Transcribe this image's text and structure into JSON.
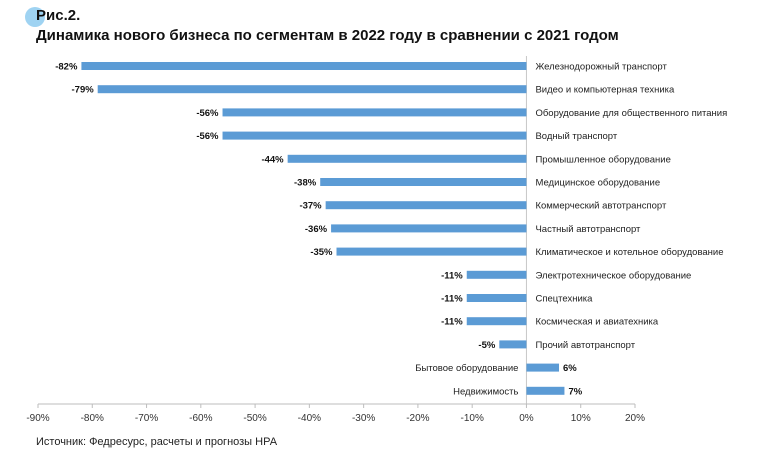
{
  "figure_label": "Рис.2.",
  "source_note": "Источник: Федресурс, расчеты и прогнозы НРА",
  "chart_data": {
    "type": "bar",
    "orientation": "horizontal",
    "title": "Динамика нового бизнеса по сегментам в 2022 году в сравнении с 2021 годом",
    "xlabel": "",
    "ylabel": "",
    "xlim": [
      -90,
      20
    ],
    "xticks": [
      -90,
      -80,
      -70,
      -60,
      -50,
      -40,
      -30,
      -20,
      -10,
      0,
      10,
      20
    ],
    "tick_suffix": "%",
    "bar_color": "#5b9bd5",
    "grid": false,
    "categories": [
      "Железнодорожный транспорт",
      "Видео и компьютерная техника",
      "Оборудование для общественного питания",
      "Водный транспорт",
      "Промышленное оборудование",
      "Медицинское оборудование",
      "Коммерческий автотранспорт",
      "Частный автотранспорт",
      "Климатическое и котельное оборудование",
      "Электротехническое оборудование",
      "Спецтехника",
      "Космическая и авиатехника",
      "Прочий автотранспорт",
      "Бытовое оборудование",
      "Недвижимость"
    ],
    "values": [
      -82,
      -79,
      -56,
      -56,
      -44,
      -38,
      -37,
      -36,
      -35,
      -11,
      -11,
      -11,
      -5,
      6,
      7
    ],
    "data_labels": [
      "-82%",
      "-79%",
      "-56%",
      "-56%",
      "-44%",
      "-38%",
      "-37%",
      "-36%",
      "-35%",
      "-11%",
      "-11%",
      "-11%",
      "-5%",
      "6%",
      "7%"
    ]
  }
}
